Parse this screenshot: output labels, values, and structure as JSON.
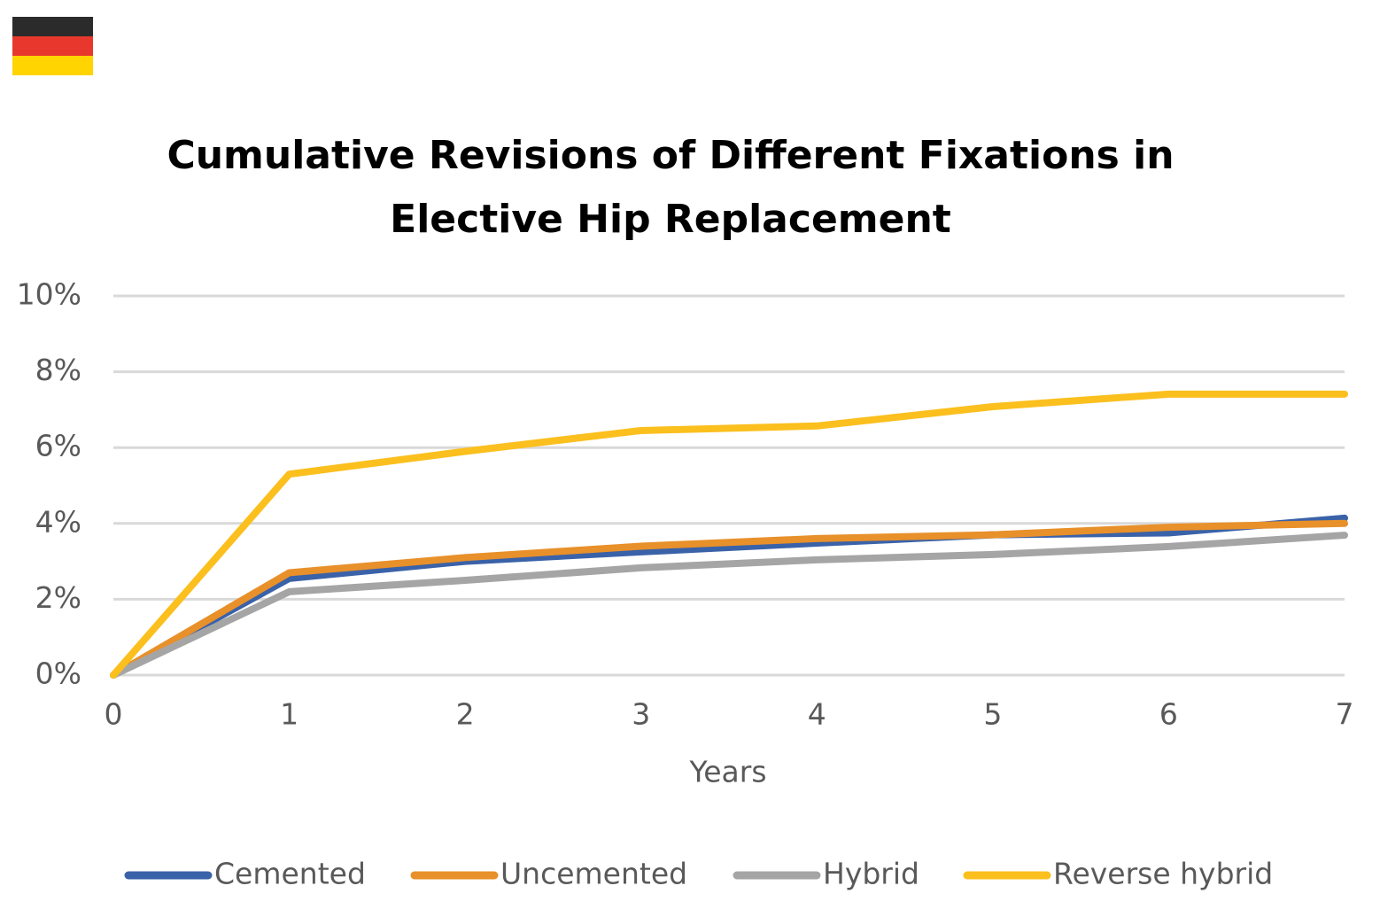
{
  "chart_data": {
    "type": "line",
    "title": "Cumulative Revisions of Different Fixations in Elective Hip Replacement",
    "x_label": "Years",
    "x": [
      0,
      1,
      2,
      3,
      4,
      5,
      6,
      7
    ],
    "xlim": [
      0,
      7
    ],
    "xticks": [
      0,
      1,
      2,
      3,
      4,
      5,
      6,
      7
    ],
    "ylim": [
      0,
      10
    ],
    "yticks": [
      {
        "value": 0,
        "label": "0%"
      },
      {
        "value": 2,
        "label": "2%"
      },
      {
        "value": 4,
        "label": "4%"
      },
      {
        "value": 6,
        "label": "6%"
      },
      {
        "value": 8,
        "label": "8%"
      },
      {
        "value": 10,
        "label": "10%"
      }
    ],
    "grid": true,
    "legend": "bottom",
    "series": [
      {
        "name": "Cemented",
        "color": "#3a62a8",
        "values": [
          0,
          2.55,
          3.0,
          3.25,
          3.48,
          3.7,
          3.75,
          4.14
        ]
      },
      {
        "name": "Uncemented",
        "color": "#e8902a",
        "values": [
          0,
          2.7,
          3.1,
          3.4,
          3.6,
          3.7,
          3.9,
          4.0
        ]
      },
      {
        "name": "Hybrid",
        "color": "#a5a5a5",
        "values": [
          0,
          2.2,
          2.5,
          2.83,
          3.04,
          3.18,
          3.39,
          3.69
        ]
      },
      {
        "name": "Reverse hybrid",
        "color": "#fbbf1e",
        "values": [
          0,
          5.3,
          5.9,
          6.45,
          6.57,
          7.08,
          7.41,
          7.41
        ]
      }
    ]
  }
}
